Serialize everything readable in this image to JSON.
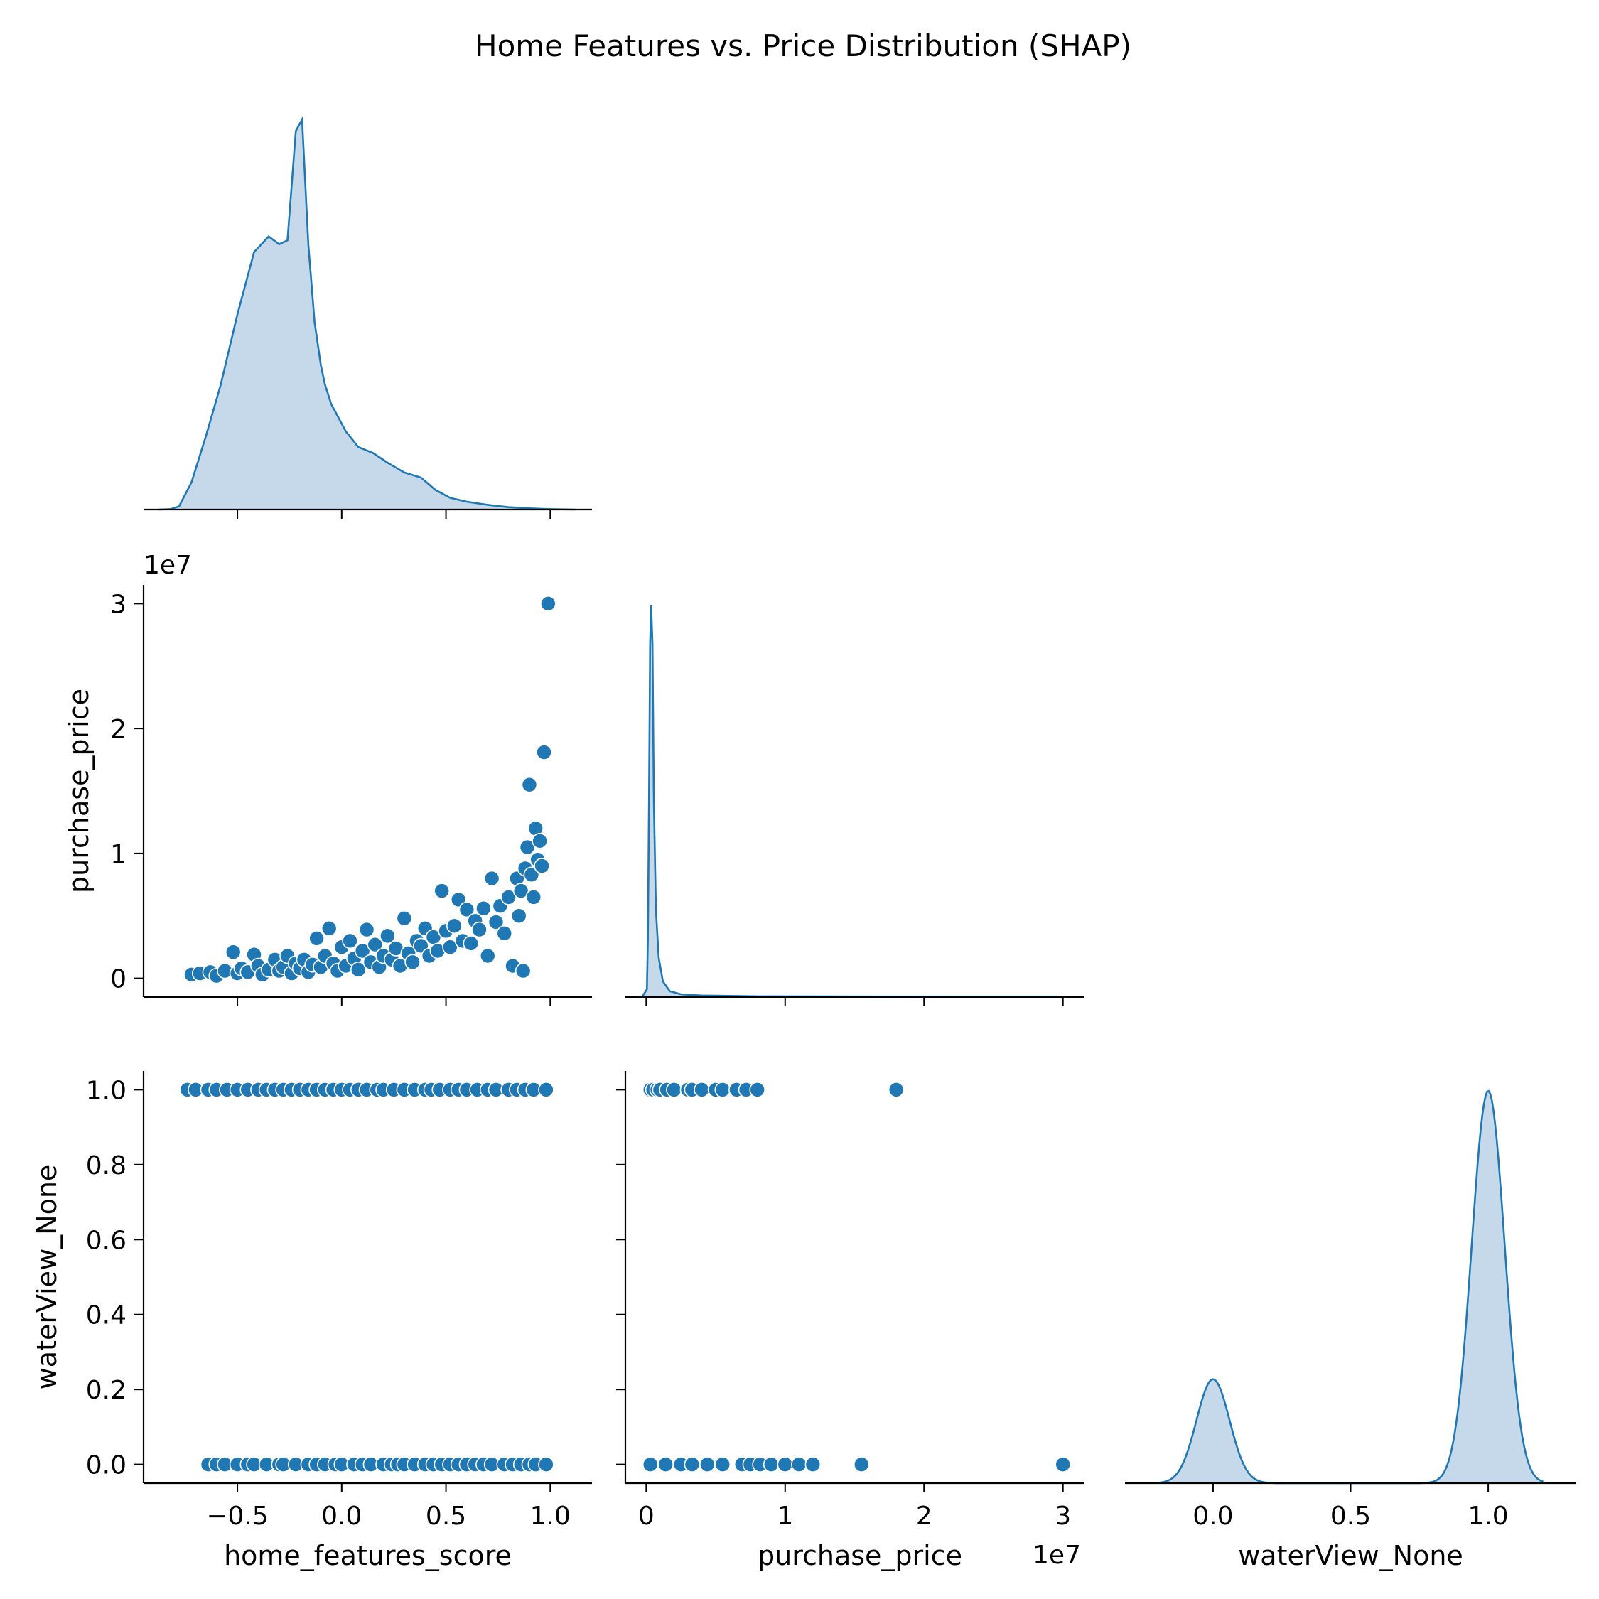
{
  "chart_data": {
    "type": "pairplot",
    "title": "Home Features vs. Price Distribution (SHAP)",
    "variables": [
      "home_features_score",
      "purchase_price",
      "waterView_None"
    ],
    "corner": true,
    "color": "#1f77b4",
    "fill_color": "#c6d9ea",
    "axes": {
      "home_features_score": {
        "label": "home_features_score",
        "lim": [
          -0.95,
          1.2
        ],
        "ticks": [
          -0.5,
          0.0,
          0.5,
          1.0
        ],
        "tick_labels": [
          "−0.5",
          "0.0",
          "0.5",
          "1.0"
        ]
      },
      "purchase_price": {
        "label": "purchase_price",
        "lim": [
          -1.5,
          31.5
        ],
        "ticks": [
          0,
          10,
          20,
          30
        ],
        "tick_labels": [
          "0",
          "1",
          "2",
          "3"
        ],
        "y_tick_labels": [
          "0",
          "1",
          "2",
          "3"
        ],
        "offset_text": "1e7",
        "unit_scale": 10000000
      },
      "waterView_None": {
        "label": "waterView_None",
        "lim": [
          -0.05,
          1.05
        ],
        "x_lim": [
          -0.32,
          1.32
        ],
        "x_ticks": [
          0.0,
          0.5,
          1.0
        ],
        "x_tick_labels": [
          "0.0",
          "0.5",
          "1.0"
        ],
        "y_ticks": [
          0.0,
          0.2,
          0.4,
          0.6,
          0.8,
          1.0
        ],
        "y_tick_labels": [
          "0.0",
          "0.2",
          "0.4",
          "0.6",
          "0.8",
          "1.0"
        ]
      }
    },
    "diagonal": {
      "home_features_score": {
        "x": [
          -0.88,
          -0.82,
          -0.78,
          -0.72,
          -0.65,
          -0.58,
          -0.5,
          -0.42,
          -0.35,
          -0.3,
          -0.26,
          -0.22,
          -0.19,
          -0.16,
          -0.13,
          -0.1,
          -0.08,
          -0.05,
          -0.02,
          0.02,
          0.08,
          0.15,
          0.22,
          0.3,
          0.38,
          0.45,
          0.52,
          0.6,
          0.7,
          0.8,
          0.9,
          1.0,
          1.12
        ],
        "density": [
          0.0,
          0.001,
          0.008,
          0.07,
          0.19,
          0.32,
          0.5,
          0.66,
          0.7,
          0.68,
          0.69,
          0.97,
          1.0,
          0.68,
          0.48,
          0.37,
          0.32,
          0.27,
          0.24,
          0.2,
          0.16,
          0.145,
          0.12,
          0.095,
          0.082,
          0.05,
          0.03,
          0.02,
          0.012,
          0.006,
          0.003,
          0.001,
          0.0
        ]
      },
      "purchase_price": {
        "x": [
          -0.3,
          0.05,
          0.12,
          0.2,
          0.28,
          0.35,
          0.45,
          0.55,
          0.7,
          0.9,
          1.2,
          1.7,
          2.5,
          4,
          8,
          15,
          22,
          30
        ],
        "density": [
          0.0,
          0.02,
          0.15,
          0.5,
          0.9,
          1.0,
          0.9,
          0.5,
          0.22,
          0.1,
          0.04,
          0.015,
          0.007,
          0.004,
          0.002,
          0.0015,
          0.001,
          0.001
        ]
      },
      "waterView_None": {
        "components": [
          {
            "mean": 0.0,
            "sd": 0.06,
            "height": 0.265
          },
          {
            "mean": 1.0,
            "sd": 0.06,
            "height": 1.0
          }
        ],
        "range": [
          -0.2,
          1.2
        ]
      }
    },
    "scatter": {
      "price_vs_score": [
        [
          -0.72,
          0.3
        ],
        [
          -0.68,
          0.4
        ],
        [
          -0.63,
          0.5
        ],
        [
          -0.6,
          0.2
        ],
        [
          -0.56,
          0.6
        ],
        [
          -0.52,
          2.1
        ],
        [
          -0.5,
          0.4
        ],
        [
          -0.48,
          0.8
        ],
        [
          -0.45,
          0.5
        ],
        [
          -0.42,
          1.9
        ],
        [
          -0.4,
          1.0
        ],
        [
          -0.38,
          0.3
        ],
        [
          -0.35,
          0.7
        ],
        [
          -0.32,
          1.5
        ],
        [
          -0.3,
          0.6
        ],
        [
          -0.28,
          0.9
        ],
        [
          -0.26,
          1.8
        ],
        [
          -0.24,
          0.4
        ],
        [
          -0.22,
          1.2
        ],
        [
          -0.2,
          0.8
        ],
        [
          -0.18,
          1.5
        ],
        [
          -0.16,
          0.5
        ],
        [
          -0.14,
          1.1
        ],
        [
          -0.12,
          3.2
        ],
        [
          -0.1,
          0.9
        ],
        [
          -0.08,
          1.8
        ],
        [
          -0.06,
          4.0
        ],
        [
          -0.04,
          1.2
        ],
        [
          -0.02,
          0.6
        ],
        [
          0.0,
          2.5
        ],
        [
          0.02,
          1.0
        ],
        [
          0.04,
          3.0
        ],
        [
          0.06,
          1.6
        ],
        [
          0.08,
          0.7
        ],
        [
          0.1,
          2.2
        ],
        [
          0.12,
          3.9
        ],
        [
          0.14,
          1.3
        ],
        [
          0.16,
          2.7
        ],
        [
          0.18,
          0.9
        ],
        [
          0.2,
          1.8
        ],
        [
          0.22,
          3.4
        ],
        [
          0.24,
          1.5
        ],
        [
          0.26,
          2.4
        ],
        [
          0.28,
          1.0
        ],
        [
          0.3,
          4.8
        ],
        [
          0.32,
          2.0
        ],
        [
          0.34,
          1.3
        ],
        [
          0.36,
          3.0
        ],
        [
          0.38,
          2.6
        ],
        [
          0.4,
          4.0
        ],
        [
          0.42,
          1.8
        ],
        [
          0.44,
          3.3
        ],
        [
          0.46,
          2.2
        ],
        [
          0.48,
          7.0
        ],
        [
          0.5,
          3.8
        ],
        [
          0.52,
          2.5
        ],
        [
          0.54,
          4.2
        ],
        [
          0.56,
          6.3
        ],
        [
          0.58,
          3.0
        ],
        [
          0.6,
          5.5
        ],
        [
          0.62,
          2.8
        ],
        [
          0.64,
          4.6
        ],
        [
          0.66,
          3.9
        ],
        [
          0.68,
          5.6
        ],
        [
          0.7,
          1.8
        ],
        [
          0.72,
          8.0
        ],
        [
          0.74,
          4.5
        ],
        [
          0.76,
          5.8
        ],
        [
          0.78,
          3.6
        ],
        [
          0.8,
          6.5
        ],
        [
          0.82,
          1.0
        ],
        [
          0.84,
          8.0
        ],
        [
          0.85,
          5.0
        ],
        [
          0.86,
          7.0
        ],
        [
          0.87,
          0.6
        ],
        [
          0.88,
          8.8
        ],
        [
          0.89,
          10.5
        ],
        [
          0.9,
          15.5
        ],
        [
          0.91,
          8.3
        ],
        [
          0.92,
          6.5
        ],
        [
          0.93,
          12.0
        ],
        [
          0.94,
          9.5
        ],
        [
          0.95,
          11.0
        ],
        [
          0.96,
          9.0
        ],
        [
          0.97,
          18.1
        ],
        [
          0.99,
          30.0
        ]
      ],
      "water_vs_score": {
        "y1": [
          -0.74,
          -0.7,
          -0.64,
          -0.6,
          -0.55,
          -0.5,
          -0.45,
          -0.4,
          -0.36,
          -0.32,
          -0.28,
          -0.24,
          -0.2,
          -0.16,
          -0.12,
          -0.08,
          -0.04,
          0.0,
          0.04,
          0.08,
          0.12,
          0.17,
          0.2,
          0.25,
          0.3,
          0.35,
          0.4,
          0.43,
          0.47,
          0.52,
          0.56,
          0.6,
          0.65,
          0.7,
          0.74,
          0.8,
          0.84,
          0.88,
          0.92,
          0.98
        ],
        "y0": [
          -0.64,
          -0.6,
          -0.56,
          -0.5,
          -0.45,
          -0.42,
          -0.36,
          -0.3,
          -0.28,
          -0.22,
          -0.16,
          -0.12,
          -0.08,
          -0.03,
          0.0,
          0.06,
          0.1,
          0.14,
          0.2,
          0.24,
          0.27,
          0.3,
          0.35,
          0.4,
          0.44,
          0.48,
          0.52,
          0.56,
          0.6,
          0.64,
          0.68,
          0.72,
          0.78,
          0.82,
          0.86,
          0.9,
          0.93,
          0.98
        ]
      },
      "water_vs_price": {
        "y1": [
          0.3,
          0.5,
          0.8,
          1.0,
          1.5,
          2.0,
          3.0,
          3.3,
          4.0,
          5.0,
          5.5,
          6.5,
          7.2,
          8.0,
          18.0
        ],
        "y0": [
          0.3,
          1.4,
          2.5,
          3.3,
          4.4,
          5.5,
          6.9,
          7.5,
          8.2,
          9.0,
          10.0,
          11.0,
          12.0,
          15.5,
          30.0
        ]
      }
    }
  }
}
